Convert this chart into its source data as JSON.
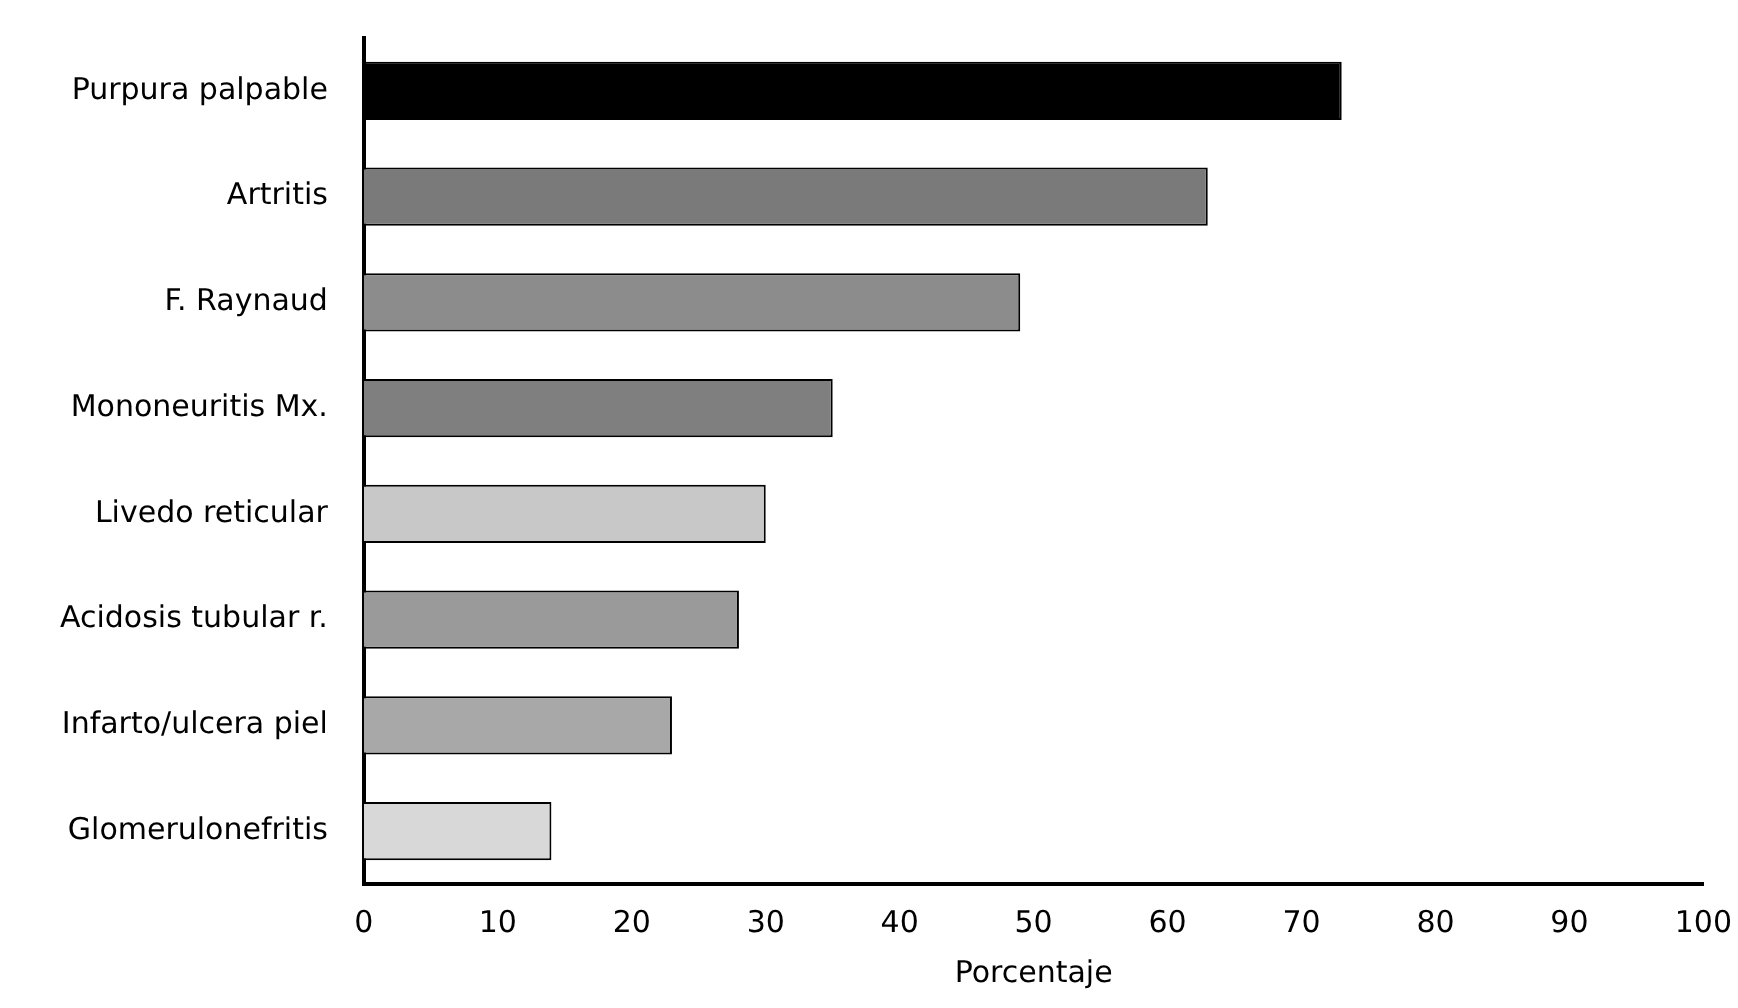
{
  "chart_data": {
    "type": "bar",
    "orientation": "horizontal",
    "xlabel": "Porcentaje",
    "categories": [
      "Purpura palpable",
      "Artritis",
      "F. Raynaud",
      "Mononeuritis Mx.",
      "Livedo reticular",
      "Acidosis tubular r.",
      "Infarto/ulcera piel",
      "Glomerulonefritis"
    ],
    "values": [
      73,
      63,
      49,
      35,
      30,
      28,
      23,
      14
    ],
    "colors": [
      "#000000",
      "#7a7a7a",
      "#8c8c8c",
      "#7f7f7f",
      "#c8c8c8",
      "#9a9a9a",
      "#a8a8a8",
      "#d8d8d8"
    ],
    "xlim": [
      0,
      100
    ],
    "xticks": [
      0,
      10,
      20,
      30,
      40,
      50,
      60,
      70,
      80,
      90,
      100
    ],
    "grid": false,
    "legend": false
  }
}
